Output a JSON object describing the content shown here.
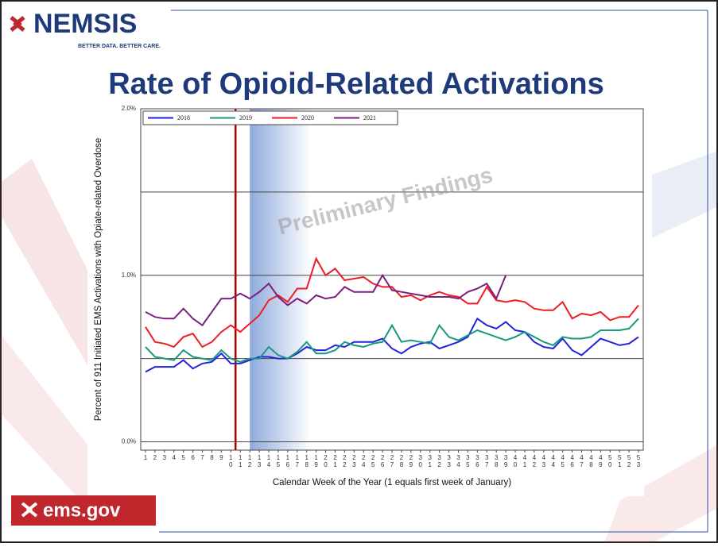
{
  "header": {
    "logo": "NEMSIS",
    "tagline": "BETTER DATA. BETTER CARE.",
    "title": "Rate of Opioid-Related Activations"
  },
  "footer": {
    "logo": "ems.gov"
  },
  "chart_data": {
    "type": "line",
    "ylabel": "Percent of 911 Initiated EMS Activations with Opiate-related Overdose",
    "xlabel": "Calendar Week of the Year (1 equals first week of January)",
    "watermark": "Preliminary Findings",
    "x": [
      1,
      2,
      3,
      4,
      5,
      6,
      7,
      8,
      9,
      10,
      11,
      12,
      13,
      14,
      15,
      16,
      17,
      18,
      19,
      20,
      21,
      22,
      23,
      24,
      25,
      26,
      27,
      28,
      29,
      30,
      31,
      32,
      33,
      34,
      35,
      36,
      37,
      38,
      39,
      40,
      41,
      42,
      43,
      44,
      45,
      46,
      47,
      48,
      49,
      50,
      51,
      52,
      53
    ],
    "xlim": [
      0.5,
      53.5
    ],
    "xticks": [
      1,
      2,
      3,
      4,
      5,
      6,
      7,
      8,
      9,
      10,
      11,
      12,
      13,
      14,
      15,
      16,
      17,
      18,
      19,
      20,
      21,
      22,
      23,
      24,
      25,
      26,
      27,
      28,
      29,
      30,
      31,
      32,
      33,
      34,
      35,
      36,
      37,
      38,
      39,
      40,
      41,
      42,
      43,
      44,
      45,
      46,
      47,
      48,
      49,
      50,
      51,
      52,
      53
    ],
    "ylim": [
      -0.05,
      2.0
    ],
    "yticks": [
      {
        "value": 0,
        "label": "0.0%"
      },
      {
        "value": 1,
        "label": "1.0%"
      },
      {
        "value": 2,
        "label": "2.0%"
      }
    ],
    "ygrid": [
      0.5,
      1.5
    ],
    "grid": true,
    "vline_x": 10.5,
    "shade_x": [
      12,
      18.5
    ],
    "legend": "top",
    "series": [
      {
        "name": "2018",
        "color": "#2222dd",
        "values": [
          0.42,
          0.45,
          0.45,
          0.45,
          0.49,
          0.44,
          0.47,
          0.48,
          0.53,
          0.47,
          0.47,
          0.49,
          0.51,
          0.51,
          0.5,
          0.5,
          0.53,
          0.57,
          0.55,
          0.55,
          0.58,
          0.57,
          0.6,
          0.6,
          0.6,
          0.62,
          0.56,
          0.53,
          0.57,
          0.59,
          0.6,
          0.56,
          0.58,
          0.6,
          0.63,
          0.74,
          0.7,
          0.68,
          0.72,
          0.67,
          0.66,
          0.6,
          0.57,
          0.56,
          0.62,
          0.55,
          0.52,
          0.57,
          0.62,
          0.6,
          0.58,
          0.59,
          0.63
        ]
      },
      {
        "name": "2019",
        "color": "#159a7e",
        "values": [
          0.57,
          0.51,
          0.5,
          0.49,
          0.55,
          0.51,
          0.5,
          0.49,
          0.55,
          0.5,
          0.48,
          0.5,
          0.5,
          0.57,
          0.52,
          0.5,
          0.54,
          0.6,
          0.53,
          0.53,
          0.55,
          0.6,
          0.58,
          0.57,
          0.59,
          0.6,
          0.7,
          0.6,
          0.61,
          0.6,
          0.59,
          0.7,
          0.63,
          0.61,
          0.64,
          0.67,
          0.65,
          0.63,
          0.61,
          0.63,
          0.66,
          0.63,
          0.6,
          0.58,
          0.63,
          0.62,
          0.62,
          0.63,
          0.67,
          0.67,
          0.67,
          0.68,
          0.74
        ]
      },
      {
        "name": "2020",
        "color": "#ee1c24",
        "values": [
          0.69,
          0.6,
          0.59,
          0.57,
          0.63,
          0.65,
          0.57,
          0.6,
          0.66,
          0.7,
          0.66,
          0.71,
          0.76,
          0.85,
          0.88,
          0.84,
          0.92,
          0.92,
          1.1,
          1.0,
          1.04,
          0.97,
          0.98,
          0.99,
          0.95,
          0.93,
          0.93,
          0.87,
          0.88,
          0.85,
          0.88,
          0.9,
          0.88,
          0.87,
          0.83,
          0.83,
          0.93,
          0.85,
          0.84,
          0.85,
          0.84,
          0.8,
          0.79,
          0.79,
          0.84,
          0.74,
          0.77,
          0.76,
          0.78,
          0.73,
          0.75,
          0.75,
          0.82
        ]
      },
      {
        "name": "2021",
        "color": "#7b1f7e",
        "values": [
          0.78,
          0.75,
          0.74,
          0.74,
          0.8,
          0.74,
          0.7,
          0.78,
          0.86,
          0.86,
          0.89,
          0.86,
          0.9,
          0.95,
          0.87,
          0.82,
          0.86,
          0.83,
          0.88,
          0.86,
          0.87,
          0.93,
          0.9,
          0.9,
          0.9,
          1.0,
          0.91,
          0.9,
          0.89,
          0.88,
          0.87,
          0.87,
          0.87,
          0.86,
          0.9,
          0.92,
          0.95,
          0.86,
          1.0,
          null,
          null,
          null,
          null,
          null,
          null,
          null,
          null,
          null,
          null,
          null,
          null,
          null,
          null
        ]
      }
    ]
  }
}
